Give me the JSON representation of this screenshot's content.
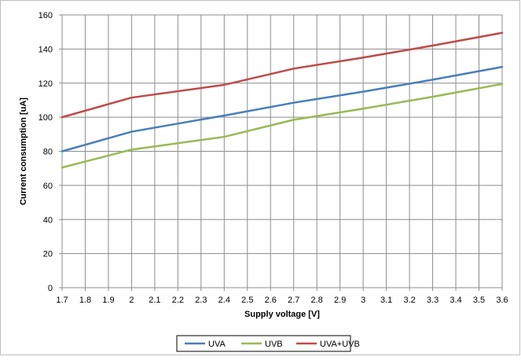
{
  "chart_data": {
    "type": "line",
    "title": "",
    "xlabel": "Supply voltage [V]",
    "ylabel": "Current consumption  [uA]",
    "xlim": [
      1.7,
      3.6
    ],
    "ylim": [
      0,
      160
    ],
    "x_ticks": [
      "1.7",
      "1.8",
      "1.9",
      "2",
      "2.1",
      "2.2",
      "2.3",
      "2.4",
      "2.5",
      "2.6",
      "2.7",
      "2.8",
      "2.9",
      "3",
      "3.1",
      "3.2",
      "3.3",
      "3.4",
      "3.5",
      "3.6"
    ],
    "y_ticks": [
      "0",
      "20",
      "40",
      "60",
      "80",
      "100",
      "120",
      "140",
      "160"
    ],
    "grid": true,
    "legend_position": "bottom",
    "x": [
      1.7,
      2.0,
      2.4,
      2.7,
      3.0,
      3.3,
      3.6
    ],
    "series": [
      {
        "name": "UVA",
        "color": "#4a7ebb",
        "values": [
          80,
          91.5,
          101,
          108.5,
          115,
          122,
          129.5
        ]
      },
      {
        "name": "UVB",
        "color": "#98b954",
        "values": [
          70.5,
          81,
          88.5,
          98.5,
          105,
          112,
          119.5
        ]
      },
      {
        "name": "UVA+UVB",
        "color": "#be4b48",
        "values": [
          100,
          111.5,
          119,
          128.5,
          135,
          142,
          149.5
        ]
      }
    ]
  }
}
